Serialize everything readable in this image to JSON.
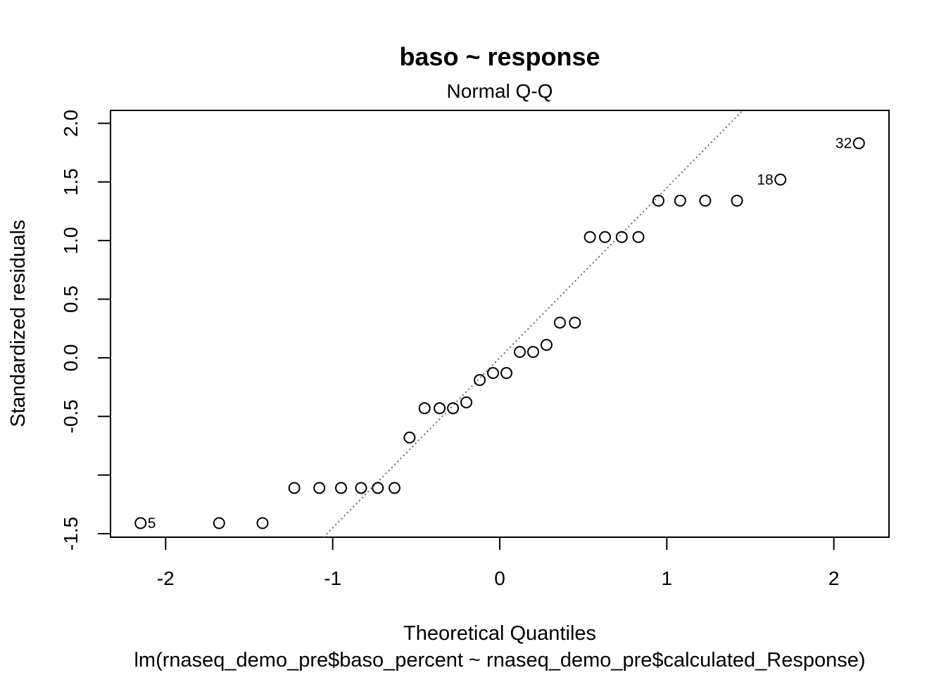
{
  "chart_data": {
    "type": "scatter",
    "title": "baso ~ response",
    "subtitle": "Normal Q-Q",
    "xlabel": "Theoretical Quantiles",
    "xlabel_sub": "lm(rnaseq_demo_pre$baso_percent ~ rnaseq_demo_pre$calculated_Response)",
    "ylabel": "Standardized residuals",
    "xlim": [
      -2.33,
      2.33
    ],
    "ylim": [
      -1.53,
      2.11
    ],
    "xticks": [
      -2,
      -1,
      0,
      1,
      2
    ],
    "xtick_labels": [
      "-2",
      "-1",
      "0",
      "1",
      "2"
    ],
    "yticks": [
      -1.5,
      -1.0,
      -0.5,
      0.0,
      0.5,
      1.0,
      1.5,
      2.0
    ],
    "ytick_labels": [
      "-1.5",
      "",
      "-0.5",
      "0.0",
      "0.5",
      "1.0",
      "1.5",
      "2.0"
    ],
    "x": [
      -2.15,
      -1.68,
      -1.42,
      -1.23,
      -1.08,
      -0.95,
      -0.83,
      -0.73,
      -0.63,
      -0.54,
      -0.45,
      -0.36,
      -0.28,
      -0.2,
      -0.12,
      -0.04,
      0.04,
      0.12,
      0.2,
      0.28,
      0.36,
      0.45,
      0.54,
      0.63,
      0.73,
      0.83,
      0.95,
      1.08,
      1.23,
      1.42,
      1.68,
      2.15
    ],
    "y": [
      -1.41,
      -1.41,
      -1.41,
      -1.11,
      -1.11,
      -1.11,
      -1.11,
      -1.11,
      -1.11,
      -0.68,
      -0.43,
      -0.43,
      -0.43,
      -0.38,
      -0.19,
      -0.13,
      -0.13,
      0.05,
      0.05,
      0.11,
      0.3,
      0.3,
      1.03,
      1.03,
      1.03,
      1.03,
      1.34,
      1.34,
      1.34,
      1.34,
      1.52,
      1.83
    ],
    "point_labels": [
      {
        "index": 0,
        "text": "5",
        "side": "right"
      },
      {
        "index": 30,
        "text": "18",
        "side": "left"
      },
      {
        "index": 31,
        "text": "32",
        "side": "left"
      }
    ],
    "reference_line": {
      "intercept": 0.0,
      "slope": 1.45,
      "style": "dotted",
      "color": "#666666"
    },
    "grid": false,
    "legend": "none"
  }
}
